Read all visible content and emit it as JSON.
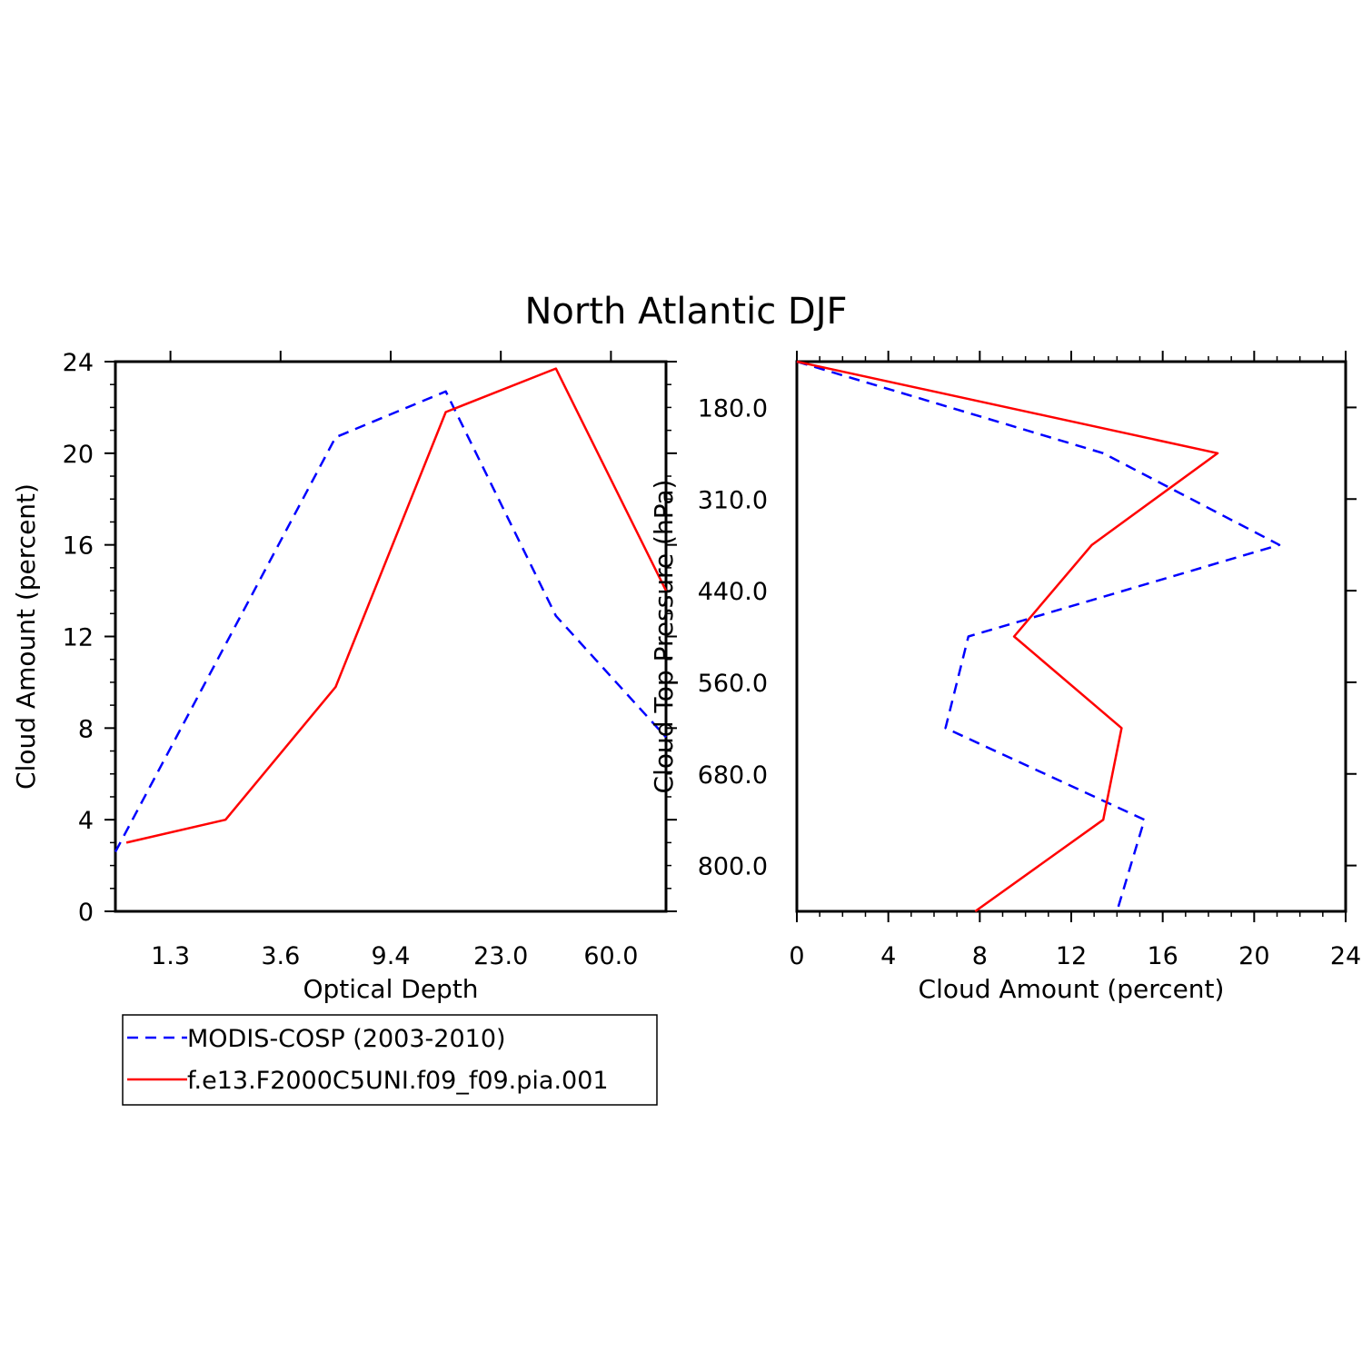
{
  "title": "North Atlantic DJF",
  "colors": {
    "obs": "#0000ff",
    "model": "#ff0000",
    "axis": "#000000"
  },
  "legend": {
    "position": "bottom-left",
    "entries": [
      {
        "label": "MODIS-COSP (2003-2010)",
        "color": "#0000ff",
        "style": "dashed"
      },
      {
        "label": "f.e13.F2000C5UNI.f09_f09.pia.001",
        "color": "#ff0000",
        "style": "solid"
      }
    ]
  },
  "chart_data": [
    {
      "type": "line",
      "xlabel": "Optical Depth",
      "ylabel": "Cloud Amount (percent)",
      "x_tick_labels": [
        "1.3",
        "3.6",
        "9.4",
        "23.0",
        "60.0"
      ],
      "y_tick_labels": [
        "0",
        "4",
        "8",
        "12",
        "16",
        "20",
        "24"
      ],
      "ylim": [
        0,
        24
      ],
      "x_bins": 5,
      "grid": false,
      "series": [
        {
          "name": "MODIS-COSP (2003-2010)",
          "x": [
            0,
            2,
            3,
            4,
            5
          ],
          "y": [
            2.6,
            20.7,
            22.7,
            12.9,
            7.6
          ]
        },
        {
          "name": "f.e13.F2000C5UNI.f09_f09.pia.001",
          "x": [
            0.1,
            1,
            2,
            3,
            4,
            5
          ],
          "y": [
            3.0,
            4.0,
            9.8,
            21.8,
            23.7,
            14.0
          ]
        }
      ]
    },
    {
      "type": "line",
      "xlabel": "Cloud Amount (percent)",
      "ylabel": "Cloud Top Pressure (hPa)",
      "x_tick_labels": [
        "0",
        "4",
        "8",
        "12",
        "16",
        "20",
        "24"
      ],
      "y_tick_labels": [
        "180.0",
        "310.0",
        "440.0",
        "560.0",
        "680.0",
        "800.0"
      ],
      "xlim": [
        0,
        24
      ],
      "y_bins": 6,
      "grid": false,
      "series": [
        {
          "name": "MODIS-COSP (2003-2010)",
          "x": [
            0,
            13.4,
            21.1,
            7.5,
            6.5,
            15.2,
            14.0
          ],
          "y": [
            0,
            1,
            2,
            3,
            4,
            5,
            6
          ]
        },
        {
          "name": "f.e13.F2000C5UNI.f09_f09.pia.001",
          "x": [
            0,
            18.4,
            12.9,
            9.5,
            14.2,
            13.4,
            7.8
          ],
          "y": [
            0,
            1,
            2,
            3,
            4,
            5,
            6
          ]
        }
      ]
    }
  ]
}
